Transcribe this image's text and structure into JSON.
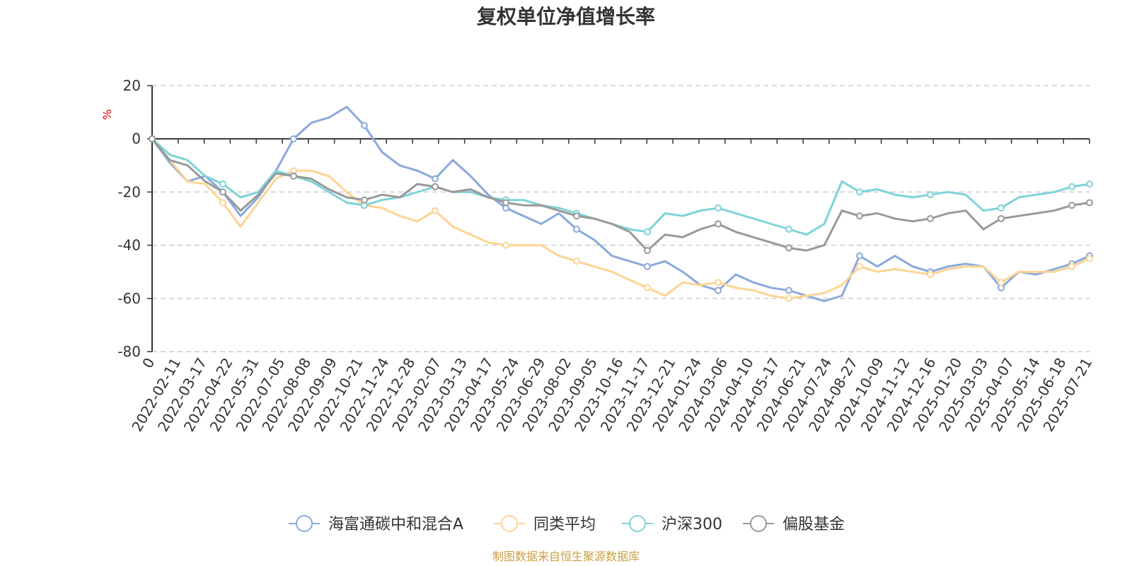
{
  "chart_data": {
    "type": "line",
    "title": "复权单位净值增长率",
    "ylabel": "%",
    "ylim": [
      -80,
      20
    ],
    "yticks": [
      20,
      0,
      -20,
      -40,
      -60,
      -80
    ],
    "grid": true,
    "legend_position": "bottom",
    "source": "制图数据来自恒生聚源数据库",
    "x_tick_labels": [
      "0",
      "2022-02-11",
      "2022-03-17",
      "2022-04-22",
      "2022-05-31",
      "2022-07-05",
      "2022-08-08",
      "2022-09-09",
      "2022-10-21",
      "2022-11-24",
      "2022-12-28",
      "2023-02-07",
      "2023-03-13",
      "2023-04-17",
      "2023-05-24",
      "2023-06-29",
      "2023-08-02",
      "2023-09-05",
      "2023-10-16",
      "2023-11-17",
      "2023-12-21",
      "2024-01-24",
      "2024-03-06",
      "2024-04-10",
      "2024-05-17",
      "2024-06-21",
      "2024-07-24",
      "2024-08-27",
      "2024-10-09",
      "2024-11-12",
      "2024-12-16",
      "2025-01-20",
      "2025-03-03",
      "2025-04-07",
      "2025-05-14",
      "2025-06-18",
      "2025-07-21"
    ],
    "series": [
      {
        "name": "海富通碳中和混合A",
        "color": "#8aa9dc",
        "values": [
          0,
          -9,
          -16,
          -14,
          -20,
          -29,
          -22,
          -12,
          0,
          6,
          8,
          12,
          5,
          -5,
          -10,
          -12,
          -15,
          -8,
          -14,
          -21,
          -26,
          -29,
          -32,
          -28,
          -34,
          -38,
          -44,
          -46,
          -48,
          -46,
          -50,
          -55,
          -57,
          -51,
          -54,
          -56,
          -57,
          -59,
          -61,
          -59,
          -44,
          -48,
          -44,
          -48,
          -50,
          -48,
          -47,
          -48,
          -56,
          -50,
          -51,
          -49,
          -47,
          -44
        ]
      },
      {
        "name": "同类平均",
        "color": "#fdd493",
        "values": [
          0,
          -8,
          -16,
          -17,
          -24,
          -33,
          -24,
          -15,
          -12,
          -12,
          -14,
          -20,
          -25,
          -26,
          -29,
          -31,
          -27,
          -33,
          -36,
          -39,
          -40,
          -40,
          -40,
          -44,
          -46,
          -48,
          -50,
          -53,
          -56,
          -59,
          -54,
          -55,
          -54,
          -56,
          -57,
          -59,
          -60,
          -59,
          -58,
          -55,
          -48,
          -50,
          -49,
          -50,
          -51,
          -49,
          -48,
          -48,
          -54,
          -50,
          -50,
          -50,
          -48,
          -45
        ]
      },
      {
        "name": "沪深300",
        "color": "#7dd3d8",
        "values": [
          0,
          -6,
          -8,
          -14,
          -17,
          -22,
          -20,
          -12,
          -14,
          -16,
          -20,
          -24,
          -25,
          -23,
          -22,
          -20,
          -18,
          -20,
          -20,
          -22,
          -23,
          -23,
          -25,
          -26,
          -28,
          -30,
          -32,
          -34,
          -35,
          -28,
          -29,
          -27,
          -26,
          -28,
          -30,
          -32,
          -34,
          -36,
          -32,
          -16,
          -20,
          -19,
          -21,
          -22,
          -21,
          -20,
          -21,
          -27,
          -26,
          -22,
          -21,
          -20,
          -18,
          -17
        ]
      },
      {
        "name": "偏股基金",
        "color": "#999999",
        "values": [
          0,
          -8,
          -10,
          -16,
          -20,
          -27,
          -21,
          -13,
          -14,
          -15,
          -19,
          -22,
          -23,
          -21,
          -22,
          -17,
          -18,
          -20,
          -19,
          -22,
          -24,
          -25,
          -25,
          -27,
          -29,
          -30,
          -32,
          -35,
          -42,
          -36,
          -37,
          -34,
          -32,
          -35,
          -37,
          -39,
          -41,
          -42,
          -40,
          -27,
          -29,
          -28,
          -30,
          -31,
          -30,
          -28,
          -27,
          -34,
          -30,
          -29,
          -28,
          -27,
          -25,
          -24
        ]
      }
    ]
  }
}
